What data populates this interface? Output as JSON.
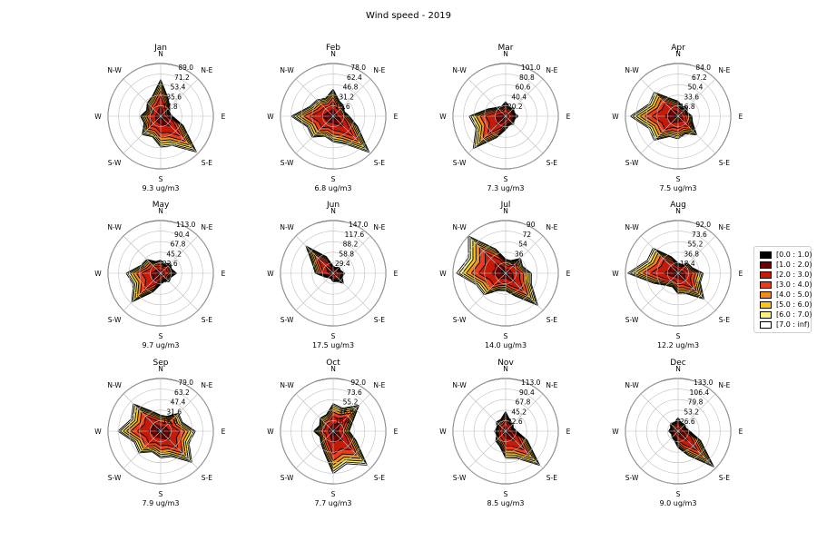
{
  "title": "Wind speed - 2019",
  "directions": [
    "N",
    "N-E",
    "E",
    "S-E",
    "S",
    "S-W",
    "W",
    "N-W"
  ],
  "legend": {
    "position": "right",
    "bins": [
      "[0.0 : 1.0)",
      "[1.0 : 2.0)",
      "[2.0 : 3.0)",
      "[3.0 : 4.0)",
      "[4.0 : 5.0)",
      "[5.0 : 6.0)",
      "[6.0 : 7.0)",
      "[7.0 : inf)"
    ],
    "colors": [
      "#000000",
      "#6b0000",
      "#c61a09",
      "#ea3b1c",
      "#f38a1e",
      "#f6c919",
      "#fbf27d",
      "#ffffff"
    ]
  },
  "chart_data": [
    {
      "type": "windrose",
      "title": "Jan",
      "caption": "9.3 ug/m3",
      "rlim": [
        0,
        89
      ],
      "rticks": [
        "17.8",
        "35.6",
        "53.4",
        "71.2",
        "89.0"
      ],
      "outer": [
        62,
        22,
        20,
        86,
        52,
        44,
        34,
        32
      ]
    },
    {
      "type": "windrose",
      "title": "Feb",
      "caption": "6.8 ug/m3",
      "rlim": [
        0,
        78
      ],
      "rticks": [
        "15.6",
        "31.2",
        "46.8",
        "62.4",
        "78.0"
      ],
      "outer": [
        40,
        22,
        24,
        76,
        38,
        44,
        62,
        34
      ]
    },
    {
      "type": "windrose",
      "title": "Mar",
      "caption": "7.3 ug/m3",
      "rlim": [
        0,
        101
      ],
      "rticks": [
        "20.2",
        "40.4",
        "60.6",
        "80.8",
        "101.0"
      ],
      "outer": [
        28,
        22,
        24,
        22,
        26,
        88,
        70,
        24
      ]
    },
    {
      "type": "windrose",
      "title": "Apr",
      "caption": "7.5 ug/m3",
      "rlim": [
        0,
        84
      ],
      "rticks": [
        "16.8",
        "33.6",
        "50.4",
        "67.2",
        "84.0"
      ],
      "outer": [
        24,
        20,
        22,
        42,
        36,
        54,
        76,
        54
      ]
    },
    {
      "type": "windrose",
      "title": "May",
      "caption": "9.7 ug/m3",
      "rlim": [
        0,
        113
      ],
      "rticks": [
        "22.6",
        "45.2",
        "67.8",
        "90.4",
        "113.0"
      ],
      "outer": [
        28,
        30,
        34,
        26,
        24,
        88,
        74,
        42
      ]
    },
    {
      "type": "windrose",
      "title": "Jun",
      "caption": "17.5 ug/m3",
      "rlim": [
        0,
        147
      ],
      "rticks": [
        "29.4",
        "58.8",
        "88.2",
        "117.6",
        "147.0"
      ],
      "outer": [
        20,
        24,
        32,
        40,
        24,
        18,
        50,
        108
      ]
    },
    {
      "type": "windrose",
      "title": "Jul",
      "caption": "14.0 ug/m3",
      "rlim": [
        0,
        90
      ],
      "rticks": [
        "18",
        "36",
        "54",
        "72",
        "90"
      ],
      "outer": [
        24,
        36,
        44,
        78,
        30,
        52,
        84,
        92
      ]
    },
    {
      "type": "windrose",
      "title": "Aug",
      "caption": "12.2 ug/m3",
      "rlim": [
        0,
        92
      ],
      "rticks": [
        "18.4",
        "36.8",
        "55.2",
        "73.6",
        "92.0"
      ],
      "outer": [
        18,
        24,
        44,
        64,
        36,
        30,
        88,
        62
      ]
    },
    {
      "type": "windrose",
      "title": "Sep",
      "caption": "7.9 ug/m3",
      "rlim": [
        0,
        79
      ],
      "rticks": [
        "15.8",
        "31.6",
        "47.4",
        "63.2",
        "79.0"
      ],
      "outer": [
        24,
        38,
        52,
        66,
        40,
        46,
        64,
        58
      ]
    },
    {
      "type": "windrose",
      "title": "Oct",
      "caption": "7.7 ug/m3",
      "rlim": [
        0,
        92
      ],
      "rticks": [
        "18.4",
        "36.8",
        "55.2",
        "73.6",
        "92.0"
      ],
      "outer": [
        48,
        64,
        28,
        84,
        74,
        30,
        34,
        32
      ]
    },
    {
      "type": "windrose",
      "title": "Nov",
      "caption": "8.5 ug/m3",
      "rlim": [
        0,
        113
      ],
      "rticks": [
        "22.6",
        "45.2",
        "67.8",
        "90.4",
        "113.0"
      ],
      "outer": [
        42,
        22,
        24,
        104,
        58,
        30,
        24,
        28
      ]
    },
    {
      "type": "windrose",
      "title": "Dec",
      "caption": "9.0 ug/m3",
      "rlim": [
        0,
        133
      ],
      "rticks": [
        "26.6",
        "53.2",
        "79.8",
        "106.4",
        "133.0"
      ],
      "outer": [
        34,
        24,
        30,
        128,
        42,
        22,
        24,
        28
      ]
    }
  ]
}
